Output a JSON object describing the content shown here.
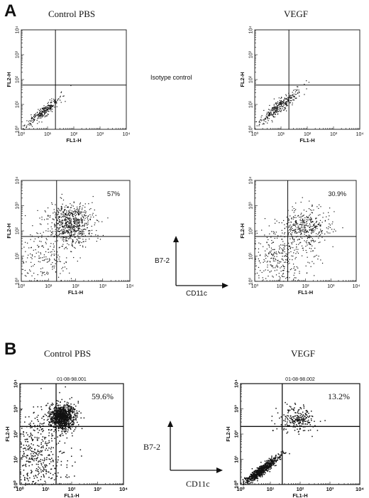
{
  "figure": {
    "panel_a_letter": "A",
    "panel_b_letter": "B",
    "panel_a": {
      "left_title": "Control PBS",
      "right_title": "VEGF",
      "isotype_note": "Isotype control",
      "y_marker_label": "B7-2",
      "x_marker_label": "CD11c"
    },
    "panel_b": {
      "left_title": "Control  PBS",
      "right_title": "VEGF",
      "y_marker_label": "B7-2",
      "x_marker_label": "CD11c"
    }
  },
  "axis_text": {
    "x_axis_label": "FL1-H",
    "y_axis_label": "FL2-H",
    "tick_labels": [
      "10⁰",
      "10¹",
      "10²",
      "10³",
      "10⁴"
    ]
  },
  "chart_data": [
    {
      "type": "scatter",
      "id": "A-control-isotype",
      "xlabel": "FL1-H",
      "ylabel": "FL2-H",
      "scale": "log",
      "xlim": [
        1,
        10000
      ],
      "ylim": [
        1,
        10000
      ],
      "quadrant_gates": {
        "x": 20,
        "y": 60
      },
      "percent_label": "",
      "header": "",
      "population": [
        {
          "center_log": [
            0.8,
            0.7
          ],
          "spread_log": [
            0.35,
            0.35
          ],
          "n": 260,
          "elongated": true
        }
      ]
    },
    {
      "type": "scatter",
      "id": "A-vegf-isotype",
      "xlabel": "FL1-H",
      "ylabel": "FL2-H",
      "scale": "log",
      "xlim": [
        1,
        10000
      ],
      "ylim": [
        1,
        10000
      ],
      "quadrant_gates": {
        "x": 20,
        "y": 60
      },
      "percent_label": "",
      "header": "",
      "population": [
        {
          "center_log": [
            0.9,
            0.9
          ],
          "spread_log": [
            0.4,
            0.4
          ],
          "n": 320,
          "elongated": true
        }
      ]
    },
    {
      "type": "scatter",
      "id": "A-control-b7-2",
      "xlabel": "FL1-H",
      "ylabel": "FL2-H",
      "scale": "log",
      "xlim": [
        1,
        10000
      ],
      "ylim": [
        1,
        10000
      ],
      "quadrant_gates": {
        "x": 20,
        "y": 60
      },
      "percent_label": "57%",
      "header": "",
      "population": [
        {
          "center_log": [
            1.8,
            2.3
          ],
          "spread_log": [
            0.4,
            0.4
          ],
          "n": 700,
          "elongated": false
        },
        {
          "center_log": [
            0.9,
            1.0
          ],
          "spread_log": [
            0.55,
            0.6
          ],
          "n": 200,
          "elongated": false
        }
      ]
    },
    {
      "type": "scatter",
      "id": "A-vegf-b7-2",
      "xlabel": "FL1-H",
      "ylabel": "FL2-H",
      "scale": "log",
      "xlim": [
        1,
        10000
      ],
      "ylim": [
        1,
        10000
      ],
      "quadrant_gates": {
        "x": 20,
        "y": 60
      },
      "percent_label": "30.9%",
      "header": "",
      "population": [
        {
          "center_log": [
            2.0,
            2.2
          ],
          "spread_log": [
            0.45,
            0.4
          ],
          "n": 380,
          "elongated": false
        },
        {
          "center_log": [
            1.0,
            1.0
          ],
          "spread_log": [
            0.6,
            0.6
          ],
          "n": 320,
          "elongated": false
        }
      ]
    },
    {
      "type": "scatter",
      "id": "B-control",
      "xlabel": "FL1-H",
      "ylabel": "FL2-H",
      "scale": "log",
      "xlim": [
        1,
        10000
      ],
      "ylim": [
        1,
        10000
      ],
      "quadrant_gates": {
        "x": 25,
        "y": 200
      },
      "percent_label": "59.6%",
      "header": "01-08-98.001",
      "population": [
        {
          "center_log": [
            1.6,
            2.7
          ],
          "spread_log": [
            0.25,
            0.25
          ],
          "n": 900,
          "elongated": false
        },
        {
          "center_log": [
            0.6,
            1.2
          ],
          "spread_log": [
            0.6,
            0.8
          ],
          "n": 500,
          "elongated": false
        }
      ]
    },
    {
      "type": "scatter",
      "id": "B-vegf",
      "xlabel": "FL1-H",
      "ylabel": "FL2-H",
      "scale": "log",
      "xlim": [
        1,
        10000
      ],
      "ylim": [
        1,
        10000
      ],
      "quadrant_gates": {
        "x": 25,
        "y": 200
      },
      "percent_label": "13.2%",
      "header": "01-08-98.002",
      "population": [
        {
          "center_log": [
            0.7,
            0.6
          ],
          "spread_log": [
            0.3,
            0.3
          ],
          "n": 700,
          "elongated": true
        },
        {
          "center_log": [
            1.9,
            2.6
          ],
          "spread_log": [
            0.3,
            0.25
          ],
          "n": 220,
          "elongated": false
        }
      ]
    }
  ]
}
